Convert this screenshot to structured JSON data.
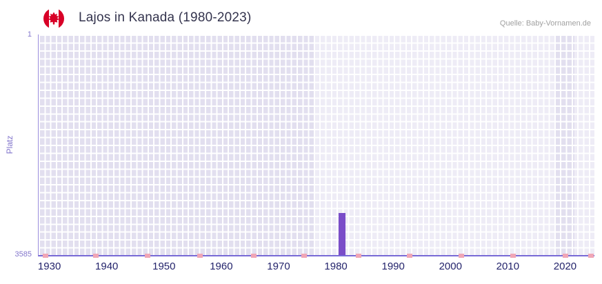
{
  "header": {
    "title": "Lajos in Kanada (1980-2023)",
    "source": "Quelle: Baby-Vornamen.de",
    "flag_icon": "canada-flag-icon"
  },
  "chart_data": {
    "type": "bar",
    "title": "Lajos in Kanada (1980-2023)",
    "xlabel": "",
    "ylabel": "Platz",
    "legend": "none",
    "grid": true,
    "x_axis": {
      "min": 1928,
      "max": 2025,
      "ticks": [
        1930,
        1940,
        1950,
        1960,
        1970,
        1980,
        1990,
        2000,
        2010,
        2020
      ]
    },
    "y_axis": {
      "min": 1,
      "max": 3585,
      "inverted": true,
      "top_label": "1",
      "bottom_label": "3585"
    },
    "series": [
      {
        "name": "Lajos",
        "color": "#7a4dc8",
        "points": [
          {
            "x": 1981,
            "y": 2900
          }
        ]
      }
    ],
    "unranked_markers": {
      "color": "#f0a6b6",
      "years": [
        1929.2,
        1938,
        1947,
        1956.2,
        1965.5,
        1974.3,
        1983.9,
        1992.8,
        2001.8,
        2010.8,
        2019.9,
        2024.4
      ]
    },
    "plot_bands": [
      {
        "from": 1976,
        "to": 2018
      },
      {
        "from": 2021.5,
        "to": 2025
      }
    ],
    "colors": {
      "plot_background": "#e2dfef",
      "grid_line": "#ffffff",
      "axis_line": "#7769d6",
      "tick_label_x": "#23236b",
      "tick_label_y": "#8376cc",
      "band_overlay": "rgba(255,255,255,0.42)"
    }
  }
}
